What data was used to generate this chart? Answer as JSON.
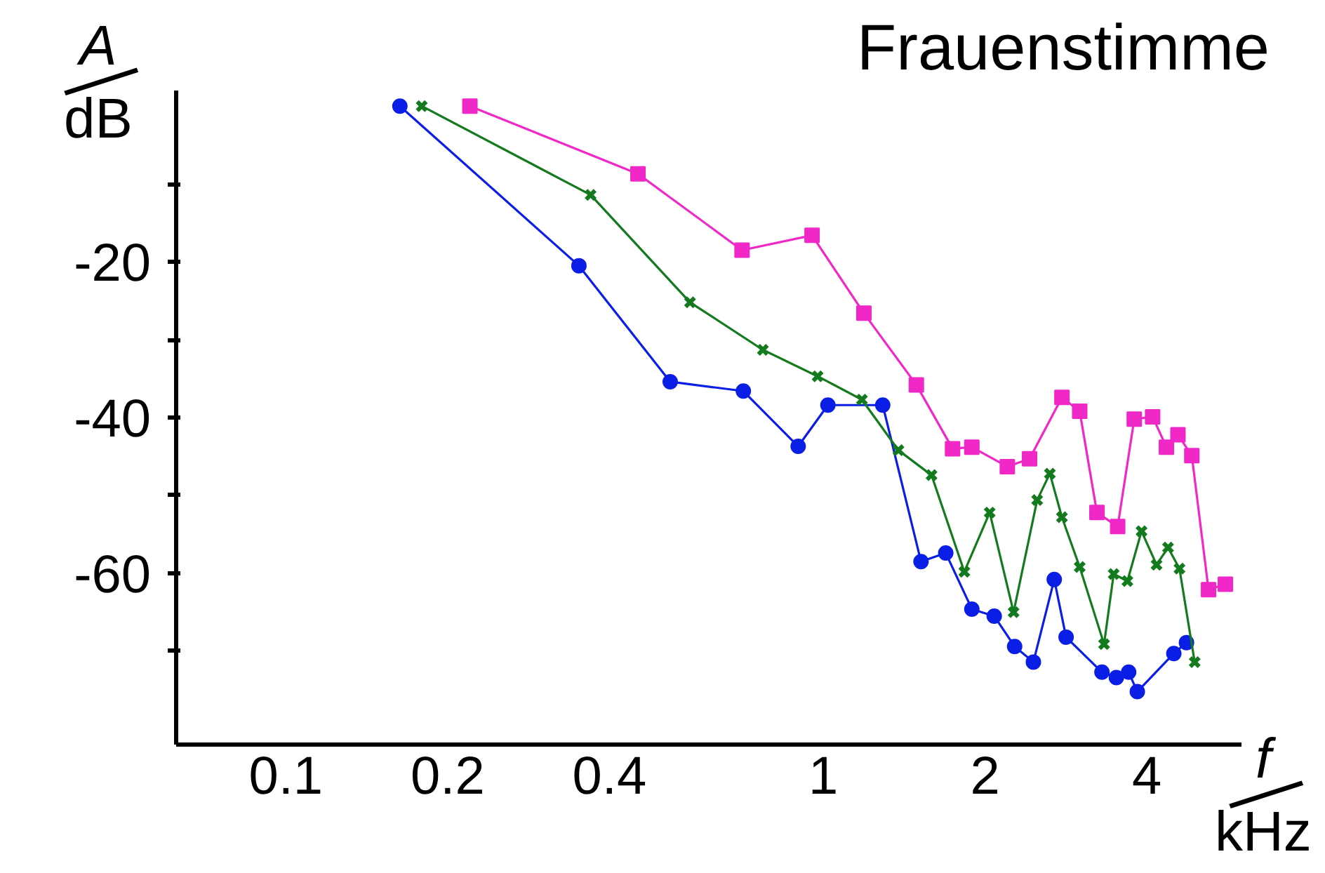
{
  "chart_data": {
    "type": "line",
    "title": "Frauenstimme",
    "xlabel": "f/kHz",
    "ylabel": "A/dB",
    "log": "x",
    "grid": false,
    "line_style": "solid",
    "xlim": [
      0.0625,
      6
    ],
    "xticks": [
      0.1,
      0.2,
      0.4,
      1,
      2,
      4
    ],
    "ylim": [
      -82,
      2
    ],
    "yticks": [
      {
        "value": -10,
        "label": null
      },
      -20,
      {
        "value": -30,
        "label": null
      },
      -40,
      {
        "value": -50,
        "label": null
      },
      -60,
      {
        "value": -70,
        "label": null
      }
    ],
    "series": [
      {
        "color": "#0a1ee6",
        "marker": "circle",
        "x": [
          0.163,
          0.351,
          0.519,
          0.71,
          0.898,
          1.02,
          1.29,
          1.52,
          1.69,
          1.89,
          2.08,
          2.27,
          2.46,
          2.69,
          2.83,
          3.3,
          3.51,
          3.7,
          3.84,
          4.49,
          4.74
        ],
        "values": [
          0,
          -20.5,
          -35.4,
          -36.6,
          -43.7,
          -38.4,
          -38.4,
          -58.5,
          -57.4,
          -64.6,
          -65.5,
          -69.4,
          -71.4,
          -60.8,
          -68.2,
          -72.7,
          -73.4,
          -72.7,
          -75.2,
          -70.3,
          -68.9
        ]
      },
      {
        "color": "#137a1e",
        "marker": "cross",
        "x": [
          0.179,
          0.369,
          0.565,
          0.772,
          0.976,
          1.18,
          1.38,
          1.59,
          1.83,
          2.04,
          2.26,
          2.5,
          2.64,
          2.78,
          3.0,
          3.33,
          3.47,
          3.68,
          3.91,
          4.17,
          4.38,
          4.6,
          4.91
        ],
        "values": [
          0,
          -11.4,
          -25.2,
          -31.3,
          -34.7,
          -37.7,
          -44.2,
          -47.4,
          -59.8,
          -52.2,
          -65,
          -50.6,
          -47.2,
          -52.8,
          -59.2,
          -69.1,
          -60.1,
          -61,
          -54.6,
          -58.9,
          -56.7,
          -59.4,
          -71.4
        ]
      },
      {
        "color": "#f028c8",
        "marker": "square",
        "x": [
          0.22,
          0.452,
          0.706,
          0.953,
          1.19,
          1.49,
          1.74,
          1.89,
          2.2,
          2.42,
          2.78,
          3.0,
          3.23,
          3.53,
          3.79,
          4.1,
          4.35,
          4.57,
          4.85,
          5.21,
          5.6
        ],
        "values": [
          0,
          -8.7,
          -18.5,
          -16.6,
          -26.6,
          -35.8,
          -44,
          -43.8,
          -46.3,
          -45.3,
          -37.4,
          -39.2,
          -52.2,
          -54,
          -40.2,
          -39.9,
          -43.8,
          -42.2,
          -44.9,
          -62.1,
          -61.4
        ]
      }
    ]
  }
}
